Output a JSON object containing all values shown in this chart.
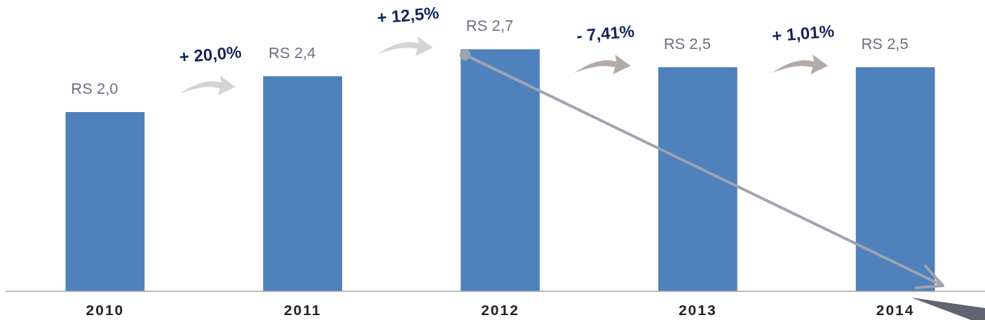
{
  "chart_data": {
    "type": "bar",
    "categories": [
      "2010",
      "2011",
      "2012",
      "2013",
      "2014"
    ],
    "values": [
      2.0,
      2.4,
      2.7,
      2.5,
      2.5
    ],
    "color": "#4f81bd",
    "value_labels": [
      "RS 2,0",
      "RS 2,4",
      "RS 2,7",
      "RS 2,5",
      "RS 2,5"
    ],
    "ylim": [
      0,
      3.25
    ],
    "tick_labels": "x",
    "annotations": [
      "+ 20,0%",
      "+ 12,5%",
      "- 7,41%",
      "+ 1,01%"
    ]
  }
}
